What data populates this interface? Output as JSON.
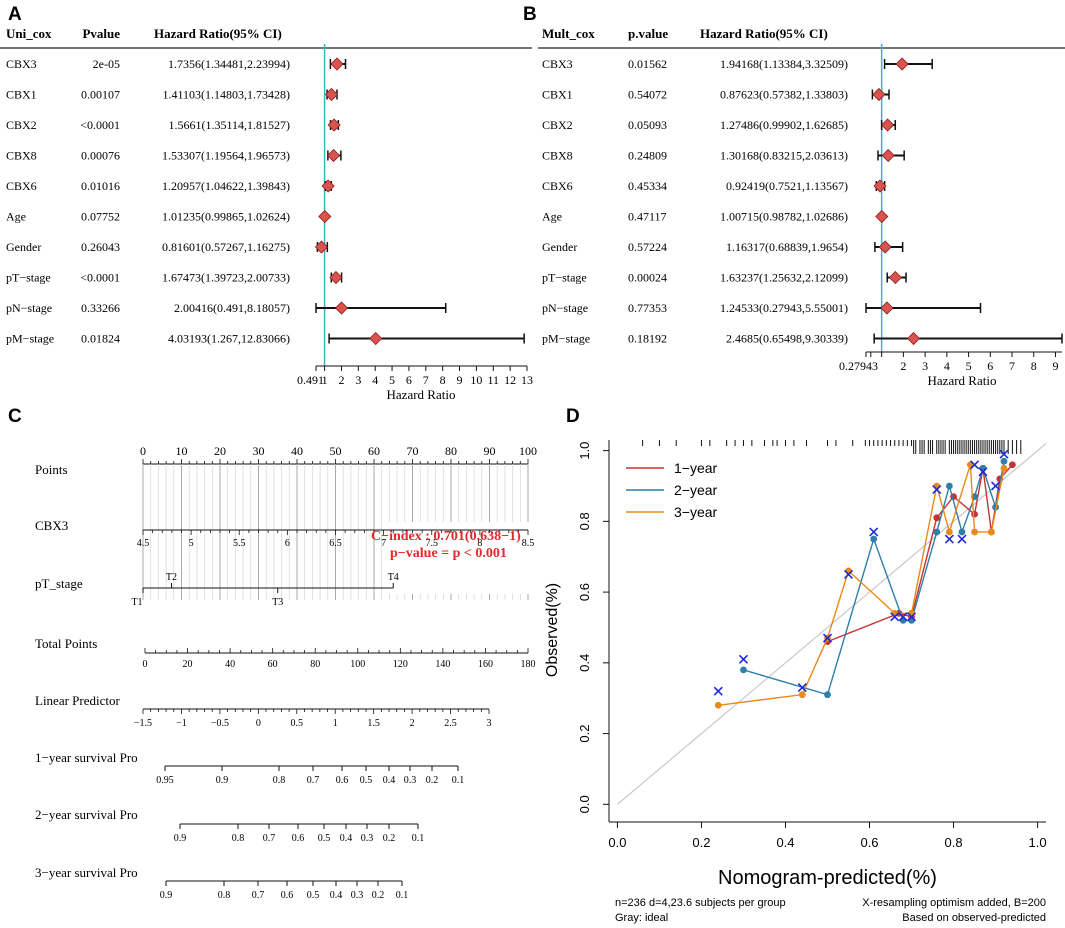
{
  "panel_letters": {
    "a": "A",
    "b": "B",
    "c": "C",
    "d": "D"
  },
  "colors": {
    "ref_line": "#3cb4c8",
    "diamond": "#d9534f",
    "diamond_edge": "#8b1a1a",
    "red_text": "#e8262a",
    "year1": "#c83232",
    "year2": "#2f7fa8",
    "year3": "#e88a1a",
    "cross": "#1d2bd6",
    "ideal": "#c8c8c8"
  },
  "chart_data": [
    {
      "type": "forest",
      "panel": "A",
      "headers": {
        "name": "Uni_cox",
        "p": "Pvalue",
        "hr": "Hazard Ratio(95% CI)"
      },
      "rows": [
        {
          "name": "CBX3",
          "p": "2e-05",
          "hr_text": "1.7356(1.34481,2.23994)",
          "hr": 1.7356,
          "lo": 1.34481,
          "hi": 2.23994
        },
        {
          "name": "CBX1",
          "p": "0.00107",
          "hr_text": "1.41103(1.14803,1.73428)",
          "hr": 1.41103,
          "lo": 1.14803,
          "hi": 1.73428
        },
        {
          "name": "CBX2",
          "p": "<0.0001",
          "hr_text": "1.5661(1.35114,1.81527)",
          "hr": 1.5661,
          "lo": 1.35114,
          "hi": 1.81527
        },
        {
          "name": "CBX8",
          "p": "0.00076",
          "hr_text": "1.53307(1.19564,1.96573)",
          "hr": 1.53307,
          "lo": 1.19564,
          "hi": 1.96573
        },
        {
          "name": "CBX6",
          "p": "0.01016",
          "hr_text": "1.20957(1.04622,1.39843)",
          "hr": 1.20957,
          "lo": 1.04622,
          "hi": 1.39843
        },
        {
          "name": "Age",
          "p": "0.07752",
          "hr_text": "1.01235(0.99865,1.02624)",
          "hr": 1.01235,
          "lo": 0.99865,
          "hi": 1.02624
        },
        {
          "name": "Gender",
          "p": "0.26043",
          "hr_text": "0.81601(0.57267,1.16275)",
          "hr": 0.81601,
          "lo": 0.57267,
          "hi": 1.16275
        },
        {
          "name": "pT−stage",
          "p": "<0.0001",
          "hr_text": "1.67473(1.39723,2.00733)",
          "hr": 1.67473,
          "lo": 1.39723,
          "hi": 2.00733
        },
        {
          "name": "pN−stage",
          "p": "0.33266",
          "hr_text": "2.00416(0.491,8.18057)",
          "hr": 2.00416,
          "lo": 0.491,
          "hi": 8.18057
        },
        {
          "name": "pM−stage",
          "p": "0.01824",
          "hr_text": "4.03193(1.267,12.83066)",
          "hr": 4.03193,
          "lo": 1.267,
          "hi": 12.83066
        }
      ],
      "xlim": [
        0.491,
        13
      ],
      "ticks": [
        "0.491",
        "1",
        "2",
        "3",
        "4",
        "5",
        "6",
        "7",
        "8",
        "9",
        "10",
        "11",
        "12",
        "13"
      ],
      "tick_values": [
        0.491,
        1,
        2,
        3,
        4,
        5,
        6,
        7,
        8,
        9,
        10,
        11,
        12,
        13
      ],
      "xlabel": "Hazard Ratio",
      "ref_value": 1
    },
    {
      "type": "forest",
      "panel": "B",
      "headers": {
        "name": "Mult_cox",
        "p": "p.value",
        "hr": "Hazard Ratio(95% CI)"
      },
      "rows": [
        {
          "name": "CBX3",
          "p": "0.01562",
          "hr_text": "1.94168(1.13384,3.32509)",
          "hr": 1.94168,
          "lo": 1.13384,
          "hi": 3.32509
        },
        {
          "name": "CBX1",
          "p": "0.54072",
          "hr_text": "0.87623(0.57382,1.33803)",
          "hr": 0.87623,
          "lo": 0.57382,
          "hi": 1.33803
        },
        {
          "name": "CBX2",
          "p": "0.05093",
          "hr_text": "1.27486(0.99902,1.62685)",
          "hr": 1.27486,
          "lo": 0.99902,
          "hi": 1.62685
        },
        {
          "name": "CBX8",
          "p": "0.24809",
          "hr_text": "1.30168(0.83215,2.03613)",
          "hr": 1.30168,
          "lo": 0.83215,
          "hi": 2.03613
        },
        {
          "name": "CBX6",
          "p": "0.45334",
          "hr_text": "0.92419(0.7521,1.13567)",
          "hr": 0.92419,
          "lo": 0.7521,
          "hi": 1.13567
        },
        {
          "name": "Age",
          "p": "0.47117",
          "hr_text": "1.00715(0.98782,1.02686)",
          "hr": 1.00715,
          "lo": 0.98782,
          "hi": 1.02686
        },
        {
          "name": "Gender",
          "p": "0.57224",
          "hr_text": "1.16317(0.68839,1.9654)",
          "hr": 1.16317,
          "lo": 0.68839,
          "hi": 1.9654
        },
        {
          "name": "pT−stage",
          "p": "0.00024",
          "hr_text": "1.63237(1.25632,2.12099)",
          "hr": 1.63237,
          "lo": 1.25632,
          "hi": 2.12099
        },
        {
          "name": "pN−stage",
          "p": "0.77353",
          "hr_text": "1.24533(0.27943,5.55001)",
          "hr": 1.24533,
          "lo": 0.27943,
          "hi": 5.55001
        },
        {
          "name": "pM−stage",
          "p": "0.18192",
          "hr_text": "2.4685(0.65498,9.30339)",
          "hr": 2.4685,
          "lo": 0.65498,
          "hi": 9.30339
        }
      ],
      "xlim": [
        0.27943,
        9.3
      ],
      "ticks": [
        "0.27943",
        "2",
        "3",
        "4",
        "5",
        "6",
        "7",
        "8",
        "9"
      ],
      "tick_values": [
        0.27943,
        2,
        3,
        4,
        5,
        6,
        7,
        8,
        9
      ],
      "minor_ticks": [
        0.5,
        1
      ],
      "xlabel": "Hazard Ratio",
      "ref_value": 1
    },
    {
      "type": "nomogram",
      "panel": "C",
      "annotation": {
        "cindex": "C−index : 0.701(0.638−1)",
        "pvalue": "p−value = p < 0.001"
      },
      "rows": [
        {
          "label": "Points",
          "start": 0,
          "end": 100,
          "ticks": [
            "0",
            "10",
            "20",
            "30",
            "40",
            "50",
            "60",
            "70",
            "80",
            "90",
            "100"
          ]
        },
        {
          "label": "CBX3",
          "start": 4.5,
          "end": 8.5,
          "ticks": [
            "4.5",
            "5",
            "5.5",
            "6",
            "6.5",
            "7",
            "7.5",
            "8",
            "8.5"
          ]
        },
        {
          "label": "pT_stage",
          "categories": [
            "T1",
            "T2",
            "T3",
            "T4"
          ],
          "points": [
            0,
            7.4,
            35,
            65
          ]
        },
        {
          "label": "Total Points",
          "start": 0,
          "end": 180,
          "ticks": [
            "0",
            "20",
            "40",
            "60",
            "80",
            "100",
            "120",
            "140",
            "160",
            "180"
          ]
        },
        {
          "label": "Linear Predictor",
          "start": -1.5,
          "end": 3,
          "ticks": [
            "−1.5",
            "−1",
            "−0.5",
            "0",
            "0.5",
            "1",
            "1.5",
            "2",
            "2.5",
            "3"
          ],
          "tick_values": [
            -1.5,
            -1,
            -0.5,
            0,
            0.5,
            1,
            1.5,
            2,
            2.5,
            3
          ]
        },
        {
          "label": "1−year survival Pro",
          "ticks": [
            "0.95",
            "0.9",
            "0.8",
            "0.7",
            "0.6",
            "0.5",
            "0.4",
            "0.3",
            "0.2",
            "0.1"
          ]
        },
        {
          "label": "2−year survival Pro",
          "ticks": [
            "0.9",
            "0.8",
            "0.7",
            "0.6",
            "0.5",
            "0.4",
            "0.3",
            "0.2",
            "0.1"
          ]
        },
        {
          "label": "3−year survival Pro",
          "ticks": [
            "0.9",
            "0.8",
            "0.7",
            "0.6",
            "0.5",
            "0.4",
            "0.3",
            "0.2",
            "0.1"
          ]
        }
      ]
    },
    {
      "type": "line",
      "panel": "D",
      "xlabel": "Nomogram-predicted(%)",
      "ylabel": "Observed(%)",
      "xlim": [
        -0.02,
        1.02
      ],
      "ylim": [
        -0.05,
        1.03
      ],
      "xticks": [
        "0.0",
        "0.2",
        "0.4",
        "0.6",
        "0.8",
        "1.0"
      ],
      "xtick_values": [
        0,
        0.2,
        0.4,
        0.6,
        0.8,
        1.0
      ],
      "yticks": [
        "0.0",
        "0.2",
        "0.4",
        "0.6",
        "0.8",
        "1.0"
      ],
      "ytick_values": [
        0,
        0.2,
        0.4,
        0.6,
        0.8,
        1.0
      ],
      "legend": [
        "1−year",
        "2−year",
        "3−year"
      ],
      "legend_position": "top-left",
      "series": [
        {
          "name": "1−year",
          "x": [
            0.5,
            0.67,
            0.7,
            0.76,
            0.8,
            0.85,
            0.87,
            0.89,
            0.91,
            0.94
          ],
          "y": [
            0.46,
            0.54,
            0.53,
            0.81,
            0.87,
            0.82,
            0.95,
            0.77,
            0.92,
            0.96
          ]
        },
        {
          "name": "2−year",
          "x": [
            0.3,
            0.5,
            0.61,
            0.68,
            0.7,
            0.76,
            0.79,
            0.82,
            0.85,
            0.87,
            0.9,
            0.92
          ],
          "y": [
            0.38,
            0.31,
            0.75,
            0.52,
            0.52,
            0.77,
            0.9,
            0.77,
            0.87,
            0.95,
            0.84,
            0.97
          ]
        },
        {
          "name": "3−year",
          "x": [
            0.24,
            0.44,
            0.5,
            0.55,
            0.66,
            0.7,
            0.76,
            0.79,
            0.84,
            0.85,
            0.89,
            0.92
          ],
          "y": [
            0.28,
            0.31,
            0.47,
            0.66,
            0.54,
            0.54,
            0.9,
            0.77,
            0.96,
            0.77,
            0.77,
            0.95
          ]
        }
      ],
      "crosses": {
        "x": [
          0.24,
          0.3,
          0.44,
          0.5,
          0.55,
          0.61,
          0.66,
          0.68,
          0.7,
          0.76,
          0.79,
          0.82,
          0.85,
          0.87,
          0.9,
          0.92
        ],
        "y": [
          0.32,
          0.41,
          0.33,
          0.47,
          0.65,
          0.77,
          0.53,
          0.53,
          0.53,
          0.89,
          0.75,
          0.75,
          0.96,
          0.94,
          0.9,
          0.99
        ]
      },
      "rug_x": [
        0.06,
        0.1,
        0.14,
        0.2,
        0.22,
        0.26,
        0.28,
        0.3,
        0.32,
        0.35,
        0.37,
        0.38,
        0.4,
        0.42,
        0.45,
        0.5,
        0.52,
        0.56,
        0.59,
        0.6,
        0.61,
        0.62,
        0.63,
        0.64,
        0.65,
        0.66,
        0.67,
        0.68,
        0.69,
        0.7,
        0.705,
        0.71,
        0.72,
        0.725,
        0.73,
        0.74,
        0.745,
        0.75,
        0.76,
        0.765,
        0.77,
        0.775,
        0.78,
        0.79,
        0.795,
        0.8,
        0.805,
        0.81,
        0.815,
        0.82,
        0.825,
        0.83,
        0.835,
        0.84,
        0.845,
        0.85,
        0.855,
        0.86,
        0.865,
        0.87,
        0.875,
        0.88,
        0.885,
        0.89,
        0.895,
        0.9,
        0.905,
        0.91,
        0.915,
        0.92,
        0.93,
        0.94,
        0.95,
        0.96
      ],
      "footnote": {
        "left1": "n=236 d=4,23.6 subjects per group",
        "left2": "Gray: ideal",
        "right1": "X-resampling optimism added, B=200",
        "right2": "Based on observed-predicted"
      }
    }
  ]
}
